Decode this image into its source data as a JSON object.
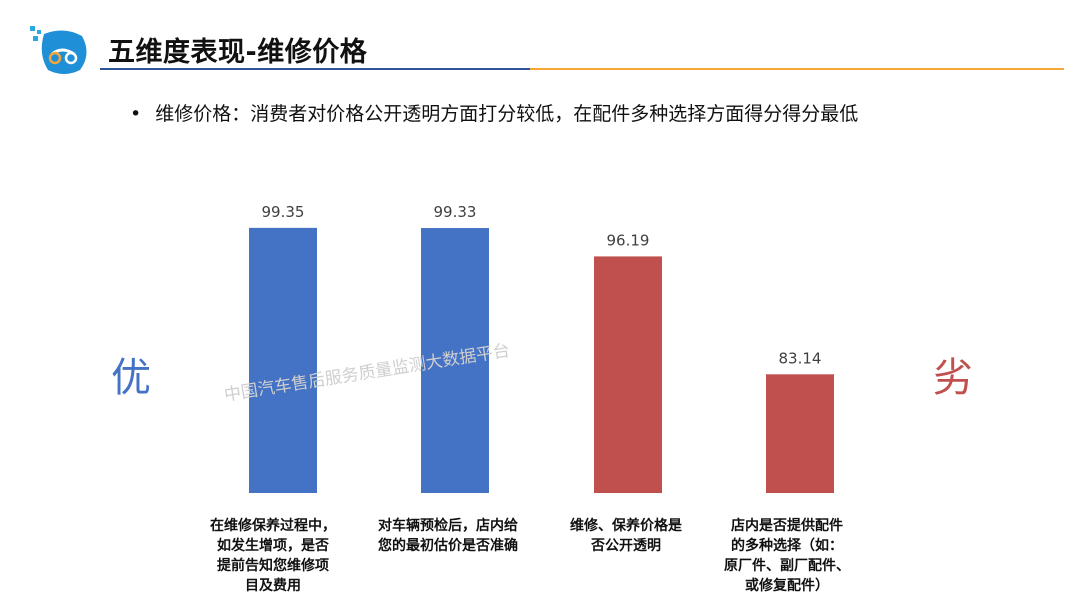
{
  "header": {
    "title": "五维度表现-维修价格"
  },
  "bullet": {
    "marker": "•",
    "text": "维修价格：消费者对价格公开透明方面打分较低，在配件多种选择方面得分得分最低"
  },
  "side_labels": {
    "left": "优",
    "right": "劣"
  },
  "watermark": "中国汽车售后服务质量监测大数据平台",
  "colors": {
    "blue_bar": "#4472c4",
    "red_bar": "#c0504d",
    "left_label": "#4472c4",
    "right_label": "#c0504d",
    "title_rule_left": "#2f5597",
    "title_rule_right": "#f4a637"
  },
  "chart_data": {
    "type": "bar",
    "categories": [
      "在维修保养过程中，\n如发生增项，是否\n提前告知您维修项\n目及费用",
      "对车辆预检后，店内给\n您的最初估价是否准确",
      "维修、保养价格是\n否公开透明",
      "店内是否提供配件\n的多种选择（如：\n原厂件、副厂配件、\n或修复配件）"
    ],
    "values": [
      99.35,
      99.33,
      96.19,
      83.14
    ],
    "value_labels": [
      "99.35",
      "99.33",
      "96.19",
      "83.14"
    ],
    "bar_colors": [
      "#4472c4",
      "#4472c4",
      "#c0504d",
      "#c0504d"
    ],
    "ylim": [
      70,
      100
    ],
    "grid": false,
    "legend": "none"
  }
}
